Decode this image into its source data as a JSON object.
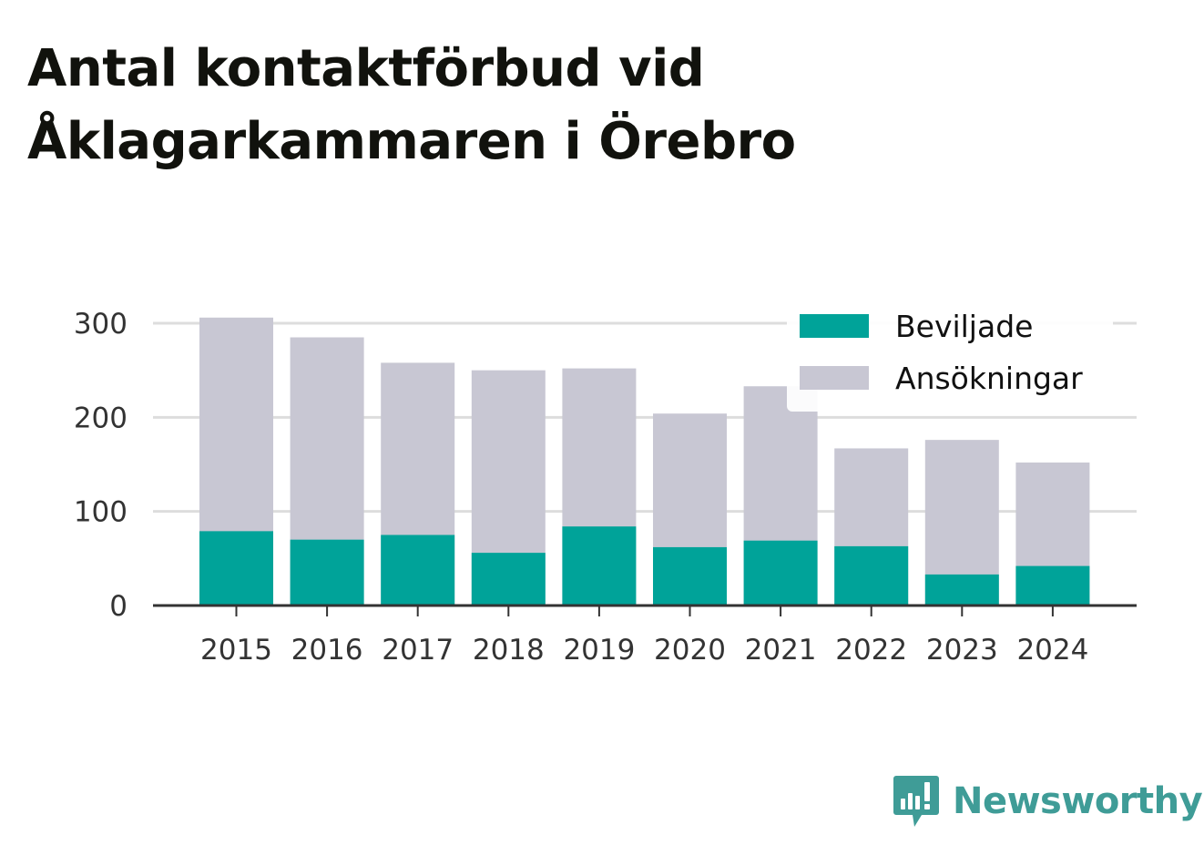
{
  "title": "Antal kontaktförbud vid Åklagarkammaren i Örebro",
  "brand": {
    "name": "Newsworthy",
    "color": "#3f9c97"
  },
  "colors": {
    "granted": "#00a399",
    "applications": "#c8c7d3",
    "grid": "#dddddd",
    "axis": "#333333"
  },
  "chart_data": {
    "type": "bar",
    "stacked": "overlay",
    "categories": [
      "2015",
      "2016",
      "2017",
      "2018",
      "2019",
      "2020",
      "2021",
      "2022",
      "2023",
      "2024"
    ],
    "series": [
      {
        "name": "Beviljade",
        "color": "#00a399",
        "values": [
          79,
          70,
          75,
          56,
          84,
          62,
          69,
          63,
          33,
          42
        ]
      },
      {
        "name": "Ansökningar",
        "color": "#c8c7d3",
        "values": [
          306,
          285,
          258,
          250,
          252,
          204,
          233,
          167,
          176,
          152
        ]
      }
    ],
    "yticks": [
      "0",
      "100",
      "200",
      "300"
    ],
    "ylim": [
      0,
      300
    ],
    "grid": true,
    "legend": "top-right"
  }
}
